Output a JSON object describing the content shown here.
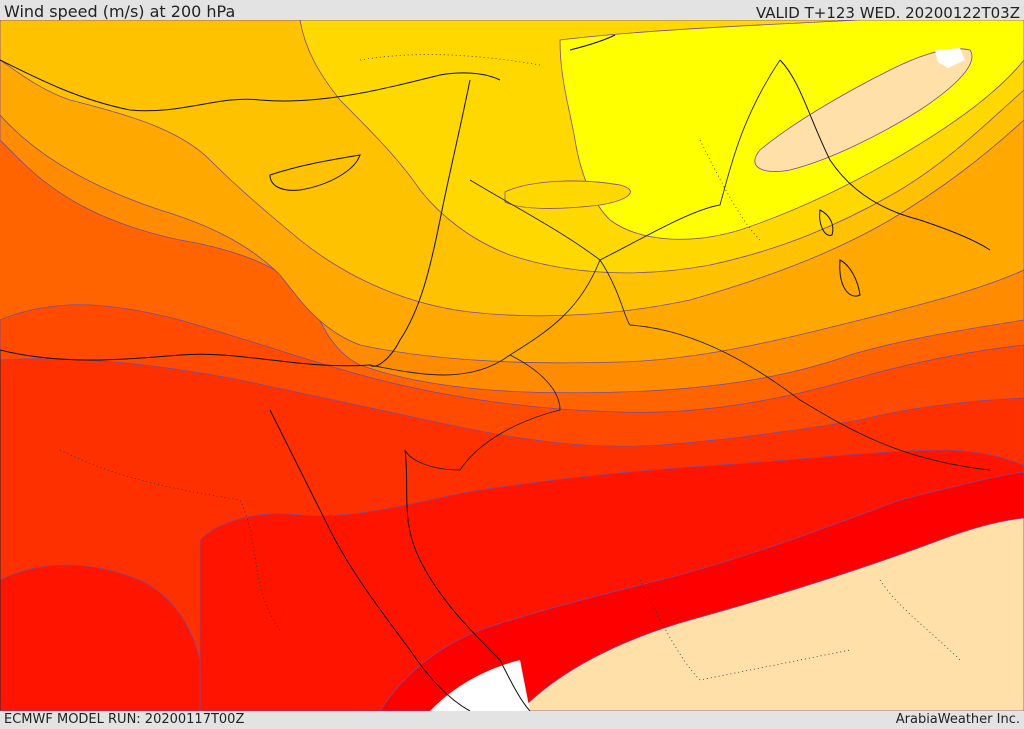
{
  "header": {
    "title": "Wind speed (m/s) at 200 hPa",
    "valid": "VALID T+123 WED. 20200122T03Z"
  },
  "footer": {
    "model_run": "ECMWF MODEL RUN: 20200117T00Z",
    "credit": "ArabiaWeather Inc."
  },
  "colors": {
    "band_lightest": "#ffe0a8",
    "band_yellow": "#ffff00",
    "band_yellow_orange": "#ffd800",
    "band_amber": "#ffc200",
    "band_orange_light": "#ffa800",
    "band_orange": "#ff8c00",
    "band_orange_dark": "#ff6400",
    "band_red_orange": "#ff4a00",
    "band_red_dark_orange": "#ff3000",
    "band_red": "#ff1400",
    "band_deep_red": "#ff0000",
    "land_outline": "#111111"
  }
}
